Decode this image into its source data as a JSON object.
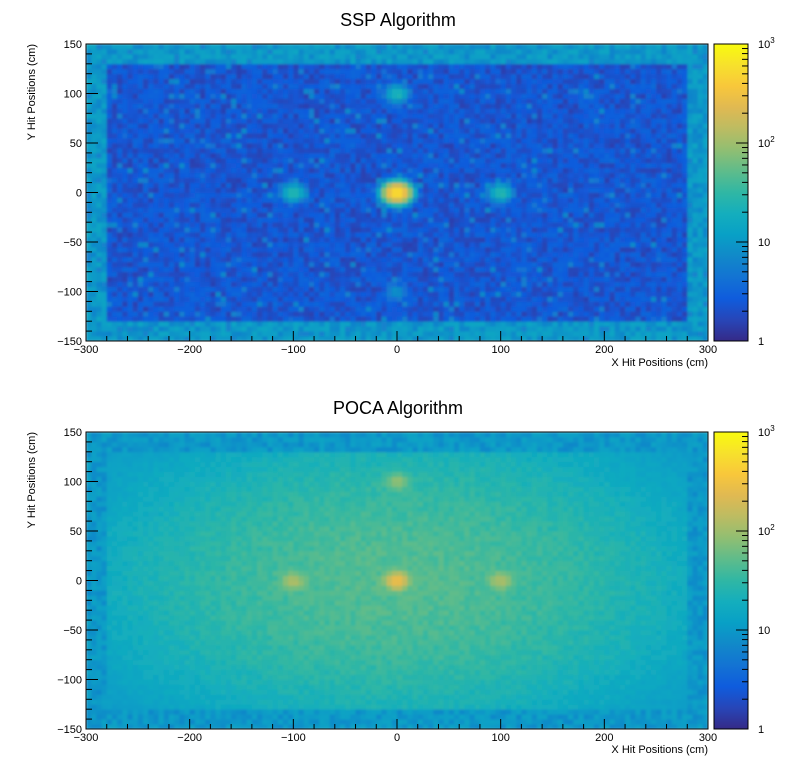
{
  "chart_data": [
    {
      "type": "heatmap",
      "title": "SSP Algorithm",
      "xlabel": "X Hit Positions (cm)",
      "ylabel": "Y Hit Positions (cm)",
      "xlim": [
        -300,
        300
      ],
      "ylim": [
        -150,
        150
      ],
      "x_ticks": [
        -300,
        -200,
        -100,
        0,
        100,
        200,
        300
      ],
      "y_ticks": [
        -150,
        -100,
        -50,
        0,
        50,
        100,
        150
      ],
      "x_tick_labels": [
        "−300",
        "−200",
        "−100",
        "0",
        "100",
        "200",
        "300"
      ],
      "y_tick_labels": [
        "−150",
        "−100",
        "−50",
        "0",
        "50",
        "100",
        "150"
      ],
      "z_scale": "log",
      "zlim": [
        1,
        1000
      ],
      "z_tick_labels": [
        {
          "value": 1,
          "base": "1",
          "exp": ""
        },
        {
          "value": 10,
          "base": "10",
          "exp": ""
        },
        {
          "value": 100,
          "base": "10",
          "exp": "2"
        },
        {
          "value": 1000,
          "base": "10",
          "exp": "3"
        }
      ],
      "background_level": 2,
      "edge_level": 10,
      "hotspots": [
        {
          "x": 0,
          "y": 0,
          "peak": 600,
          "label": "center"
        },
        {
          "x": -100,
          "y": 0,
          "peak": 25
        },
        {
          "x": 100,
          "y": 0,
          "peak": 25
        },
        {
          "x": 0,
          "y": 100,
          "peak": 20
        },
        {
          "x": 0,
          "y": -100,
          "peak": 6
        }
      ]
    },
    {
      "type": "heatmap",
      "title": "POCA Algorithm",
      "xlabel": "X Hit Positions (cm)",
      "ylabel": "Y Hit Positions (cm)",
      "xlim": [
        -300,
        300
      ],
      "ylim": [
        -150,
        150
      ],
      "x_ticks": [
        -300,
        -200,
        -100,
        0,
        100,
        200,
        300
      ],
      "y_ticks": [
        -150,
        -100,
        -50,
        0,
        50,
        100,
        150
      ],
      "x_tick_labels": [
        "−300",
        "−200",
        "−100",
        "0",
        "100",
        "200",
        "300"
      ],
      "y_tick_labels": [
        "−150",
        "−100",
        "−50",
        "0",
        "50",
        "100",
        "150"
      ],
      "z_scale": "log",
      "zlim": [
        1,
        1000
      ],
      "z_tick_labels": [
        {
          "value": 1,
          "base": "1",
          "exp": ""
        },
        {
          "value": 10,
          "base": "10",
          "exp": ""
        },
        {
          "value": 100,
          "base": "10",
          "exp": "2"
        },
        {
          "value": 1000,
          "base": "10",
          "exp": "3"
        }
      ],
      "background_level": 40,
      "edge_level": 10,
      "hotspots": [
        {
          "x": 0,
          "y": 0,
          "peak": 250,
          "label": "center"
        },
        {
          "x": -100,
          "y": 0,
          "peak": 80
        },
        {
          "x": 100,
          "y": 0,
          "peak": 80
        },
        {
          "x": 0,
          "y": 100,
          "peak": 60
        }
      ]
    }
  ],
  "colormap": [
    "#352a87",
    "#2746b8",
    "#0f5cdd",
    "#1373d3",
    "#1189c9",
    "#08a0c6",
    "#14aebd",
    "#30b7a4",
    "#5ebc8b",
    "#90be72",
    "#bcbc62",
    "#e0b952",
    "#f8c73b",
    "#f7e12c",
    "#f9fb0e"
  ]
}
